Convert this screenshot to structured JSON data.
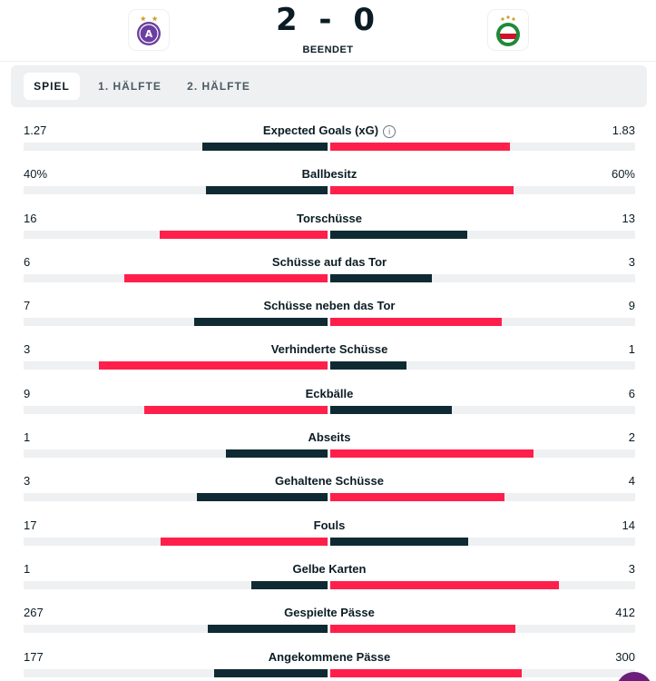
{
  "match": {
    "score": "2 - 0",
    "status": "BEENDET",
    "home_crest_icon": "austria-wien-crest-icon",
    "away_crest_icon": "rapid-wien-crest-icon"
  },
  "tabs": [
    {
      "label": "SPIEL",
      "active": true
    },
    {
      "label": "1. HÄLFTE",
      "active": false
    },
    {
      "label": "2. HÄLFTE",
      "active": false
    }
  ],
  "colors": {
    "dark": "#0f2a33",
    "red": "#ff1f4b",
    "track": "#eef0f2"
  },
  "stats": [
    {
      "label": "Expected Goals (xG)",
      "home": "1.27",
      "away": "1.83",
      "home_val": 1.27,
      "away_val": 1.83,
      "info": true
    },
    {
      "label": "Ballbesitz",
      "home": "40%",
      "away": "60%",
      "home_val": 40,
      "away_val": 60
    },
    {
      "label": "Torschüsse",
      "home": "16",
      "away": "13",
      "home_val": 16,
      "away_val": 13
    },
    {
      "label": "Schüsse auf das Tor",
      "home": "6",
      "away": "3",
      "home_val": 6,
      "away_val": 3
    },
    {
      "label": "Schüsse neben das Tor",
      "home": "7",
      "away": "9",
      "home_val": 7,
      "away_val": 9
    },
    {
      "label": "Verhinderte Schüsse",
      "home": "3",
      "away": "1",
      "home_val": 3,
      "away_val": 1
    },
    {
      "label": "Eckbälle",
      "home": "9",
      "away": "6",
      "home_val": 9,
      "away_val": 6
    },
    {
      "label": "Abseits",
      "home": "1",
      "away": "2",
      "home_val": 1,
      "away_val": 2
    },
    {
      "label": "Gehaltene Schüsse",
      "home": "3",
      "away": "4",
      "home_val": 3,
      "away_val": 4
    },
    {
      "label": "Fouls",
      "home": "17",
      "away": "14",
      "home_val": 17,
      "away_val": 14
    },
    {
      "label": "Gelbe Karten",
      "home": "1",
      "away": "3",
      "home_val": 1,
      "away_val": 3
    },
    {
      "label": "Gespielte Pässe",
      "home": "267",
      "away": "412",
      "home_val": 267,
      "away_val": 412
    },
    {
      "label": "Angekommene Pässe",
      "home": "177",
      "away": "300",
      "home_val": 177,
      "away_val": 300
    }
  ]
}
